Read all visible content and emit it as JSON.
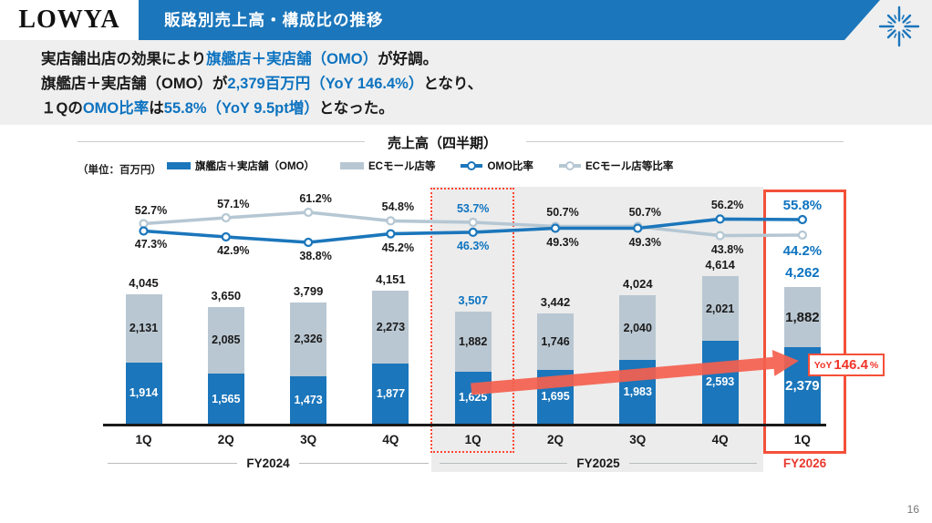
{
  "colors": {
    "accent_blue": "#1b76bb",
    "text_blue": "#0d73c0",
    "ec_bar": "#b9c7d2",
    "ec_line": "#b5c7d3",
    "label_dark": "#1a1a1a",
    "highlight_red": "#f4503a",
    "arrow_salmon": "#f4604e"
  },
  "header": {
    "logo": "LOWYA",
    "title": "販路別売上高・構成比の推移"
  },
  "summary_lines": [
    [
      {
        "text": "実店舗出店の効果により",
        "highlight": false
      },
      {
        "text": "旗艦店＋実店舗（OMO）",
        "highlight": true
      },
      {
        "text": "が好調。",
        "highlight": false
      }
    ],
    [
      {
        "text": "旗艦店＋実店舗（OMO）が",
        "highlight": false
      },
      {
        "text": "2,379百万円（YoY 146.4%）",
        "highlight": true
      },
      {
        "text": "となり、",
        "highlight": false
      }
    ],
    [
      {
        "text": "１Qの",
        "highlight": false
      },
      {
        "text": "OMO比率",
        "highlight": true
      },
      {
        "text": "は",
        "highlight": false
      },
      {
        "text": "55.8%（YoY 9.5pt増）",
        "highlight": true
      },
      {
        "text": "となった。",
        "highlight": false
      }
    ]
  ],
  "chart_data": {
    "type": "bar",
    "subtype": "stacked-bar-with-ratio-lines",
    "title": "売上高（四半期）",
    "unit_label": "（単位：百万円）",
    "categories": [
      "1Q",
      "2Q",
      "3Q",
      "4Q",
      "1Q",
      "2Q",
      "3Q",
      "4Q",
      "1Q"
    ],
    "fiscal_years": [
      {
        "label": "FY2024",
        "start": 0,
        "end": 3
      },
      {
        "label": "FY2025",
        "start": 4,
        "end": 7
      },
      {
        "label": "FY2026",
        "start": 8,
        "end": 8
      }
    ],
    "bar_series": [
      {
        "name": "旗艦店＋実店舗（OMO）",
        "values": [
          1914,
          1565,
          1473,
          1877,
          1625,
          1695,
          1983,
          2593,
          2379
        ]
      },
      {
        "name": "ECモール店等",
        "values": [
          2131,
          2085,
          2326,
          2273,
          1882,
          1746,
          2040,
          2021,
          1882
        ]
      }
    ],
    "totals": [
      4045,
      3650,
      3799,
      4151,
      3507,
      3442,
      4024,
      4614,
      4262
    ],
    "line_series": [
      {
        "name": "OMO比率",
        "values": [
          47.3,
          42.9,
          38.8,
          45.2,
          46.3,
          49.3,
          49.3,
          56.2,
          55.8
        ]
      },
      {
        "name": "ECモール店等比率",
        "values": [
          52.7,
          57.1,
          61.2,
          54.8,
          53.7,
          50.7,
          50.7,
          43.8,
          44.2
        ]
      }
    ],
    "highlight_indices": [
      4,
      8
    ],
    "legend_position": "top",
    "grid": false,
    "annotation": {
      "prefix": "YoY",
      "value": "146.4",
      "suffix": "%"
    }
  },
  "page_number": "16"
}
